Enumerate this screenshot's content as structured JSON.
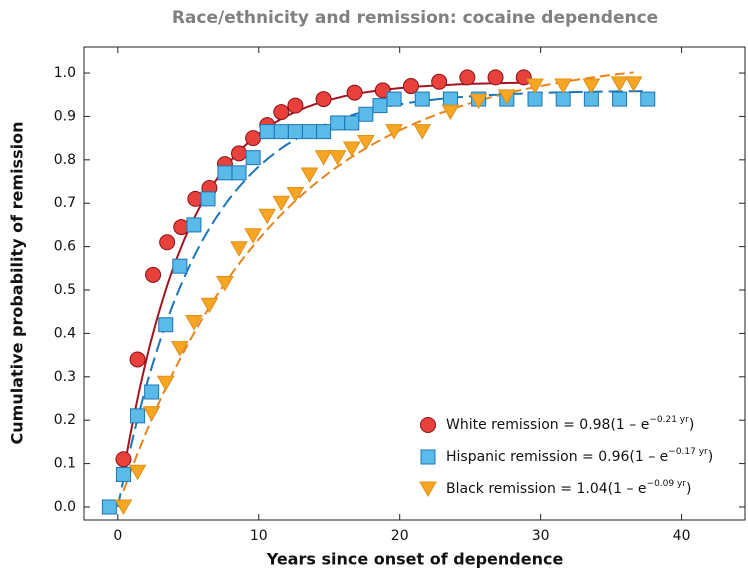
{
  "chart_data": {
    "type": "scatter",
    "title": "Race/ethnicity and remission: cocaine dependence",
    "x_label": "Years since onset of dependence",
    "y_label": "Cumulative probability of remission",
    "xlim": [
      -2.4,
      44.5
    ],
    "ylim": [
      -0.03,
      1.06
    ],
    "xticks": [
      0,
      10,
      20,
      30,
      40
    ],
    "yticks": [
      {
        "value": 0,
        "label": "0.0"
      },
      0.1,
      0.2,
      0.3,
      0.4,
      0.5,
      0.6,
      0.7,
      0.8,
      0.9,
      {
        "value": 1,
        "label": "1.0"
      }
    ],
    "legend": "lower right",
    "series": [
      {
        "name": "White remission = 0.98(1 – e",
        "name_exponent": "−0.21 yr",
        "name_suffix": ")",
        "marker": "circle",
        "color": "#e8413c",
        "line_color": "#a3141e",
        "dash": "none",
        "fit_a": 0.98,
        "fit_k": 0.21,
        "x": [
          0.4,
          1.4,
          2.5,
          3.5,
          4.5,
          5.5,
          6.5,
          7.6,
          8.6,
          9.6,
          10.6,
          11.6,
          12.6,
          14.6,
          16.8,
          18.8,
          20.8,
          22.8,
          24.8,
          26.8,
          28.8
        ],
        "values": [
          0.11,
          0.34,
          0.535,
          0.61,
          0.645,
          0.71,
          0.735,
          0.79,
          0.815,
          0.85,
          0.88,
          0.91,
          0.925,
          0.94,
          0.955,
          0.96,
          0.97,
          0.98,
          0.99,
          0.99,
          0.99
        ]
      },
      {
        "name": "Hispanic remission = 0.96(1 – e",
        "name_exponent": "−0.17 yr",
        "name_suffix": ")",
        "marker": "square",
        "color": "#5bbbe8",
        "line_color": "#1b75b8",
        "dash": "14 6",
        "fit_a": 0.96,
        "fit_k": 0.17,
        "x": [
          -0.6,
          0.4,
          1.4,
          2.4,
          3.4,
          4.4,
          5.4,
          6.4,
          7.6,
          8.6,
          9.6,
          10.6,
          11.6,
          12.6,
          13.6,
          14.6,
          15.6,
          16.6,
          17.6,
          18.6,
          19.6,
          21.6,
          23.6,
          25.6,
          27.6,
          29.6,
          31.6,
          33.6,
          35.6,
          37.6
        ],
        "values": [
          0,
          0.075,
          0.21,
          0.265,
          0.42,
          0.555,
          0.65,
          0.71,
          0.77,
          0.77,
          0.805,
          0.865,
          0.865,
          0.865,
          0.865,
          0.865,
          0.885,
          0.885,
          0.905,
          0.925,
          0.94,
          0.94,
          0.94,
          0.94,
          0.94,
          0.94,
          0.94,
          0.94,
          0.94,
          0.94
        ]
      },
      {
        "name": "Black remission = 1.04(1 – e",
        "name_exponent": "−0.09 yr",
        "name_suffix": ")",
        "marker": "triangle-down",
        "color": "#f6a623",
        "line_color": "#e8841a",
        "dash": "10 5",
        "fit_a": 1.04,
        "fit_k": 0.09,
        "x": [
          0.4,
          1.4,
          2.4,
          3.4,
          4.4,
          5.4,
          6.5,
          7.6,
          8.6,
          9.6,
          10.6,
          11.6,
          12.6,
          13.6,
          14.6,
          15.6,
          16.6,
          17.6,
          19.6,
          21.6,
          23.6,
          25.6,
          27.6,
          29.6,
          31.6,
          33.6,
          35.6,
          36.6
        ],
        "values": [
          0,
          0.08,
          0.215,
          0.285,
          0.365,
          0.425,
          0.465,
          0.515,
          0.595,
          0.625,
          0.67,
          0.7,
          0.72,
          0.765,
          0.805,
          0.805,
          0.825,
          0.84,
          0.865,
          0.865,
          0.91,
          0.935,
          0.945,
          0.97,
          0.97,
          0.97,
          0.975,
          0.975
        ]
      }
    ]
  }
}
